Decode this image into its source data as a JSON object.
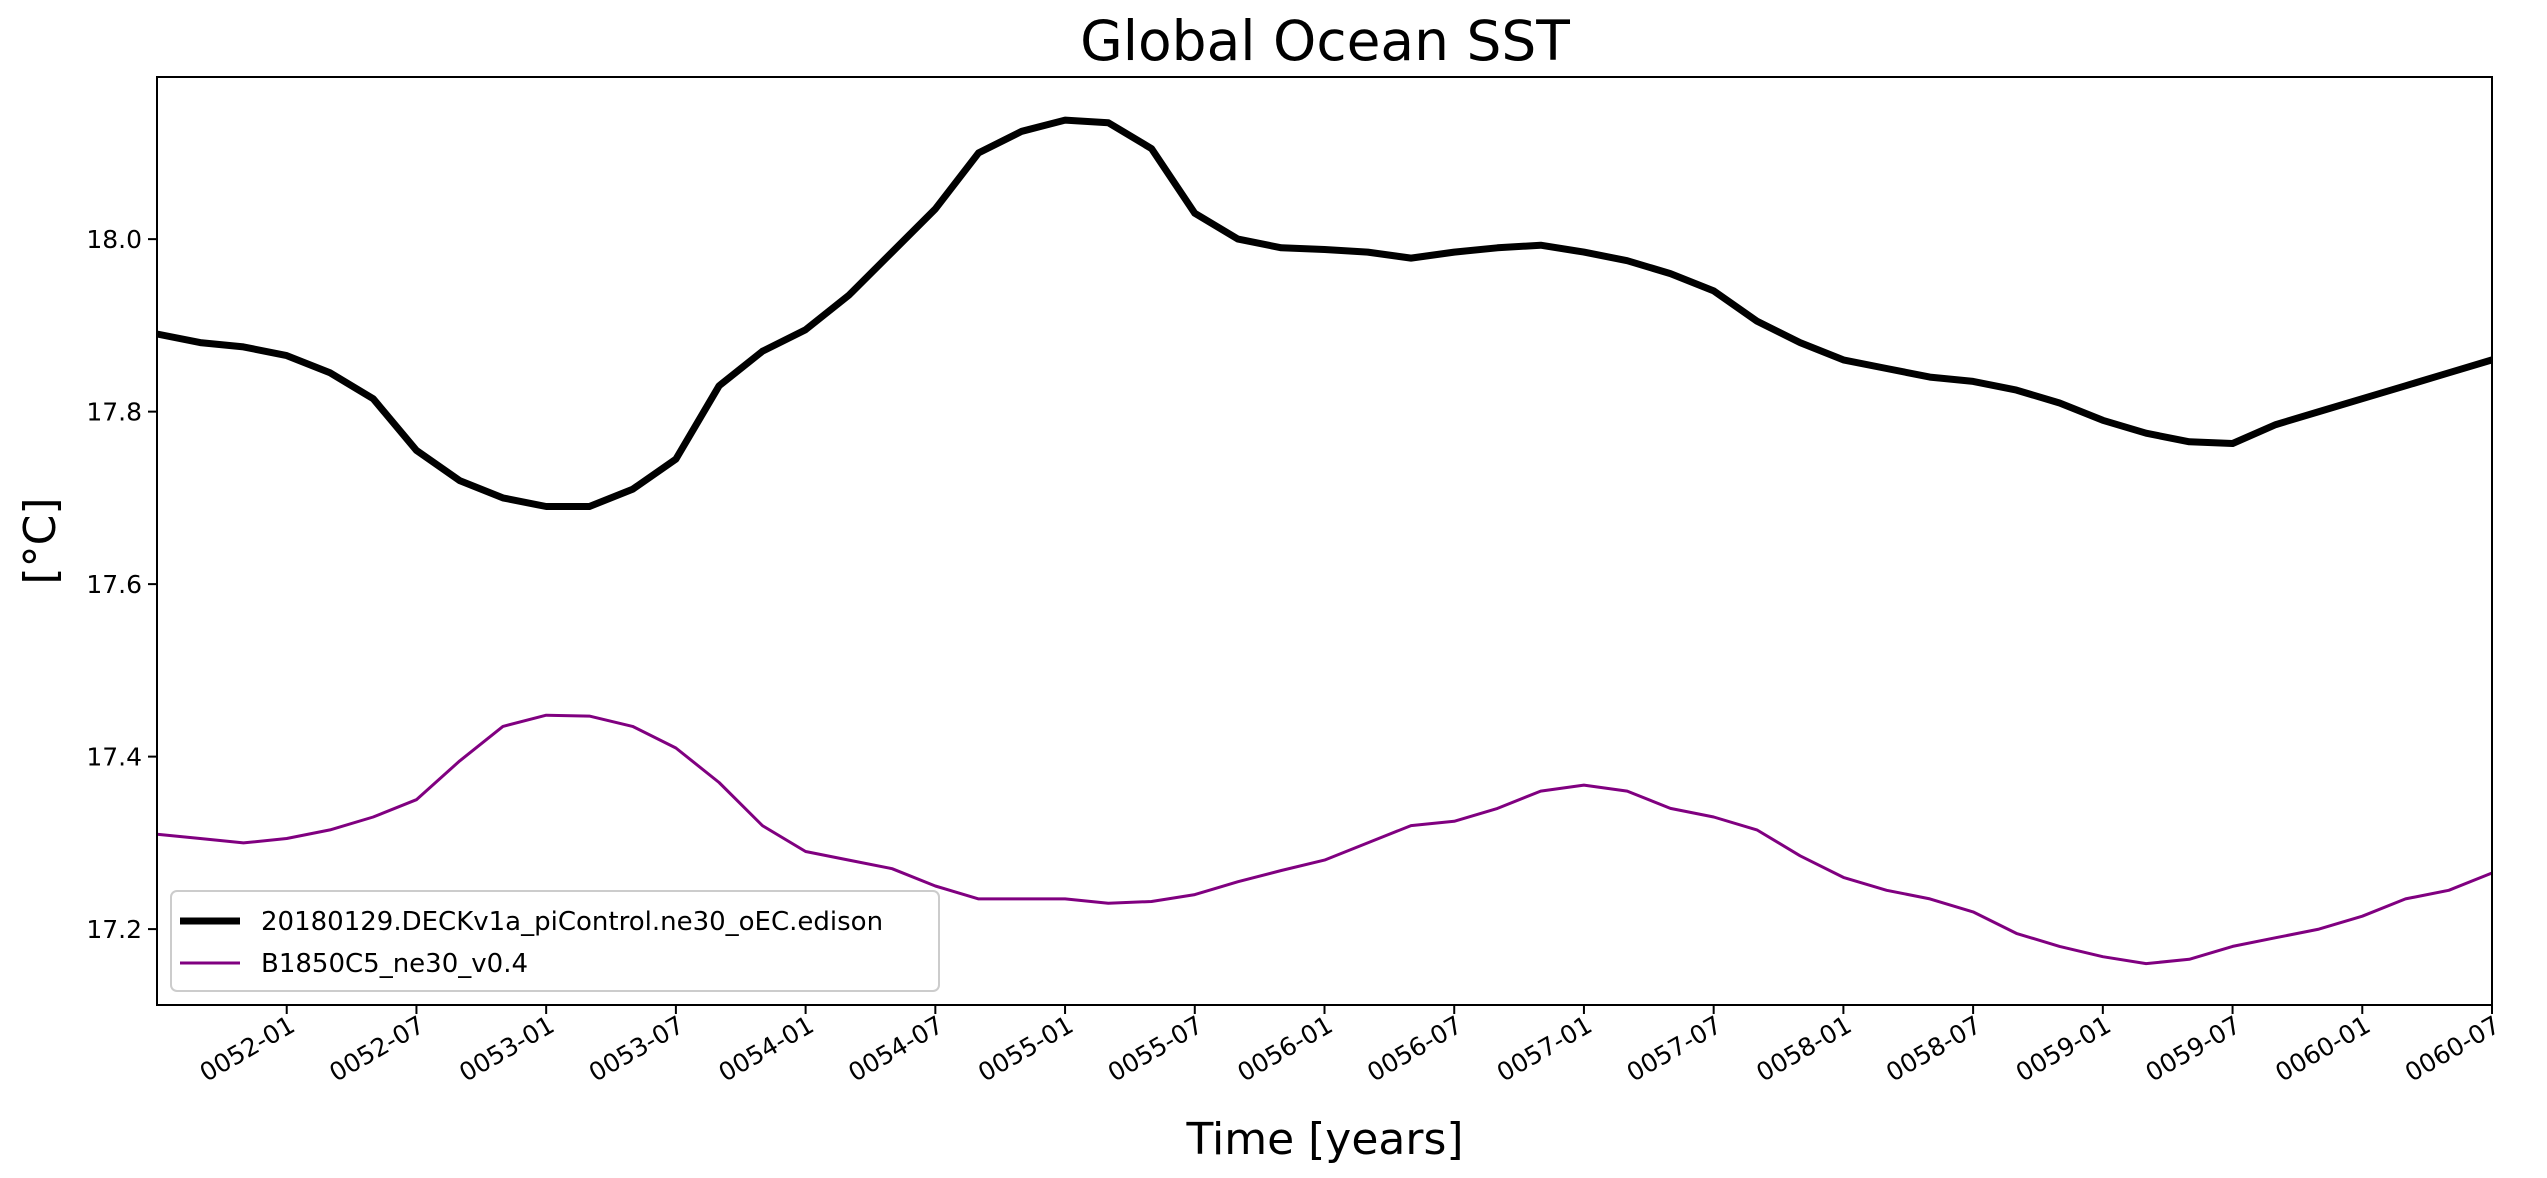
{
  "chart_data": {
    "type": "line",
    "title": "Global Ocean SST",
    "xlabel": "Time [years]",
    "ylabel": "[°C]",
    "x_ticks": [
      "0052-01",
      "0052-07",
      "0053-01",
      "0053-07",
      "0054-01",
      "0054-07",
      "0055-01",
      "0055-07",
      "0056-01",
      "0056-07",
      "0057-01",
      "0057-07",
      "0058-01",
      "0058-07",
      "0059-01",
      "0059-07",
      "0060-01",
      "0060-07"
    ],
    "y_ticks": [
      "17.2",
      "17.4",
      "17.6",
      "17.8",
      "18.0"
    ],
    "xlim": [
      "0051-07",
      "0060-07"
    ],
    "ylim": [
      17.112,
      18.188
    ],
    "grid": false,
    "legend_position": "lower left",
    "series": [
      {
        "name": "20180129.DECKv1a_piControl.ne30_oEC.edison",
        "color": "#000000",
        "line_style": "thick solid",
        "x": [
          "0051-07",
          "0051-09",
          "0051-11",
          "0052-01",
          "0052-03",
          "0052-05",
          "0052-07",
          "0052-09",
          "0052-11",
          "0053-01",
          "0053-03",
          "0053-05",
          "0053-07",
          "0053-09",
          "0053-11",
          "0054-01",
          "0054-03",
          "0054-05",
          "0054-07",
          "0054-09",
          "0054-11",
          "0055-01",
          "0055-03",
          "0055-05",
          "0055-07",
          "0055-09",
          "0055-11",
          "0056-01",
          "0056-03",
          "0056-05",
          "0056-07",
          "0056-09",
          "0056-11",
          "0057-01",
          "0057-03",
          "0057-05",
          "0057-07",
          "0057-09",
          "0057-11",
          "0058-01",
          "0058-03",
          "0058-05",
          "0058-07",
          "0058-09",
          "0058-11",
          "0059-01",
          "0059-03",
          "0059-05",
          "0059-07",
          "0059-09",
          "0059-11",
          "0060-01",
          "0060-03",
          "0060-05",
          "0060-07"
        ],
        "y": [
          17.89,
          17.88,
          17.875,
          17.865,
          17.845,
          17.815,
          17.755,
          17.72,
          17.7,
          17.69,
          17.69,
          17.71,
          17.745,
          17.83,
          17.87,
          17.895,
          17.935,
          17.985,
          18.035,
          18.1,
          18.125,
          18.138,
          18.135,
          18.105,
          18.03,
          18.0,
          17.99,
          17.988,
          17.985,
          17.978,
          17.985,
          17.99,
          17.993,
          17.985,
          17.975,
          17.96,
          17.94,
          17.905,
          17.88,
          17.86,
          17.85,
          17.84,
          17.835,
          17.825,
          17.81,
          17.79,
          17.775,
          17.765,
          17.763,
          17.785,
          17.8,
          17.815,
          17.83,
          17.845,
          17.86
        ]
      },
      {
        "name": "B1850C5_ne30_v0.4",
        "color": "#800080",
        "line_style": "thin solid",
        "x": [
          "0051-07",
          "0051-09",
          "0051-11",
          "0052-01",
          "0052-03",
          "0052-05",
          "0052-07",
          "0052-09",
          "0052-11",
          "0053-01",
          "0053-03",
          "0053-05",
          "0053-07",
          "0053-09",
          "0053-11",
          "0054-01",
          "0054-03",
          "0054-05",
          "0054-07",
          "0054-09",
          "0054-11",
          "0055-01",
          "0055-03",
          "0055-05",
          "0055-07",
          "0055-09",
          "0055-11",
          "0056-01",
          "0056-03",
          "0056-05",
          "0056-07",
          "0056-09",
          "0056-11",
          "0057-01",
          "0057-03",
          "0057-05",
          "0057-07",
          "0057-09",
          "0057-11",
          "0058-01",
          "0058-03",
          "0058-05",
          "0058-07",
          "0058-09",
          "0058-11",
          "0059-01",
          "0059-03",
          "0059-05",
          "0059-07",
          "0059-09",
          "0059-11",
          "0060-01",
          "0060-03",
          "0060-05",
          "0060-07"
        ],
        "y": [
          17.31,
          17.305,
          17.3,
          17.305,
          17.315,
          17.33,
          17.35,
          17.395,
          17.435,
          17.448,
          17.447,
          17.435,
          17.41,
          17.37,
          17.32,
          17.29,
          17.28,
          17.27,
          17.25,
          17.235,
          17.235,
          17.235,
          17.23,
          17.232,
          17.24,
          17.255,
          17.268,
          17.28,
          17.3,
          17.32,
          17.325,
          17.34,
          17.36,
          17.367,
          17.36,
          17.34,
          17.33,
          17.315,
          17.285,
          17.26,
          17.245,
          17.235,
          17.22,
          17.195,
          17.18,
          17.168,
          17.16,
          17.165,
          17.18,
          17.19,
          17.2,
          17.215,
          17.235,
          17.245,
          17.265
        ]
      }
    ]
  }
}
